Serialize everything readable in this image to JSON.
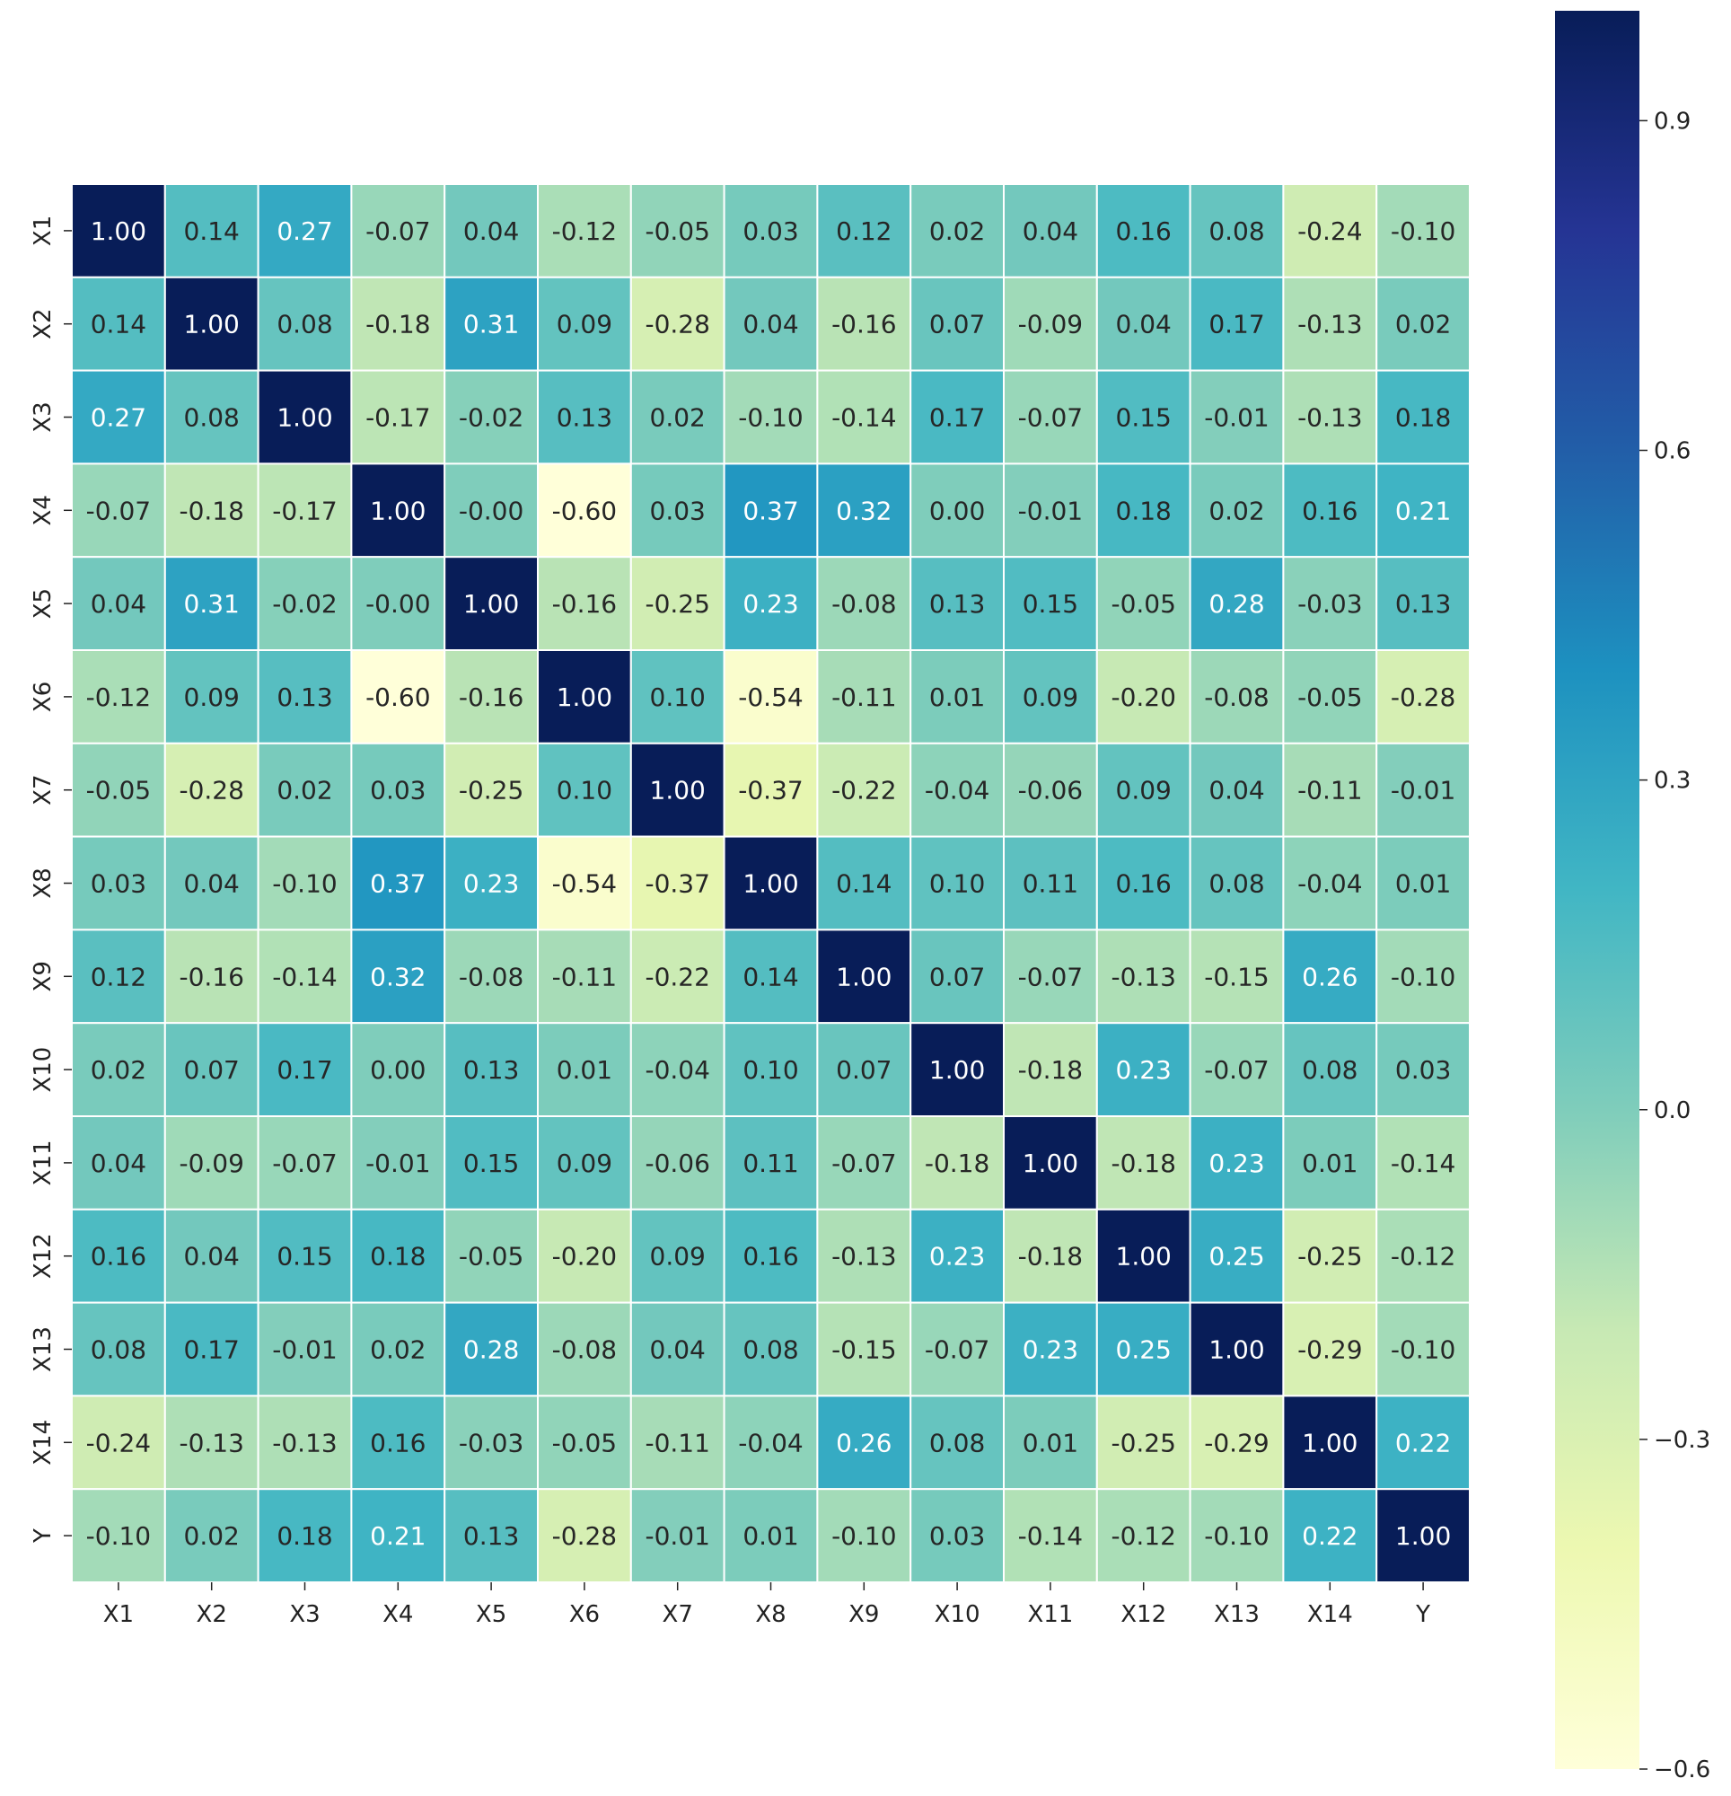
{
  "chart_data": {
    "type": "heatmap",
    "title": "",
    "xlabel": "",
    "ylabel": "",
    "x_labels": [
      "X1",
      "X2",
      "X3",
      "X4",
      "X5",
      "X6",
      "X7",
      "X8",
      "X9",
      "X10",
      "X11",
      "X12",
      "X13",
      "X14",
      "Y"
    ],
    "y_labels": [
      "X1",
      "X2",
      "X3",
      "X4",
      "X5",
      "X6",
      "X7",
      "X8",
      "X9",
      "X10",
      "X11",
      "X12",
      "X13",
      "X14",
      "Y"
    ],
    "values": [
      [
        1.0,
        0.14,
        0.27,
        -0.07,
        0.04,
        -0.12,
        -0.05,
        0.03,
        0.12,
        0.02,
        0.04,
        0.16,
        0.08,
        -0.24,
        -0.1
      ],
      [
        0.14,
        1.0,
        0.08,
        -0.18,
        0.31,
        0.09,
        -0.28,
        0.04,
        -0.16,
        0.07,
        -0.09,
        0.04,
        0.17,
        -0.13,
        0.02
      ],
      [
        0.27,
        0.08,
        1.0,
        -0.17,
        -0.02,
        0.13,
        0.02,
        -0.1,
        -0.14,
        0.17,
        -0.07,
        0.15,
        -0.01,
        -0.13,
        0.18
      ],
      [
        -0.07,
        -0.18,
        -0.17,
        1.0,
        -0.0,
        -0.6,
        0.03,
        0.37,
        0.32,
        0.0,
        -0.01,
        0.18,
        0.02,
        0.16,
        0.21
      ],
      [
        0.04,
        0.31,
        -0.02,
        -0.0,
        1.0,
        -0.16,
        -0.25,
        0.23,
        -0.08,
        0.13,
        0.15,
        -0.05,
        0.28,
        -0.03,
        0.13
      ],
      [
        -0.12,
        0.09,
        0.13,
        -0.6,
        -0.16,
        1.0,
        0.1,
        -0.54,
        -0.11,
        0.01,
        0.09,
        -0.2,
        -0.08,
        -0.05,
        -0.28
      ],
      [
        -0.05,
        -0.28,
        0.02,
        0.03,
        -0.25,
        0.1,
        1.0,
        -0.37,
        -0.22,
        -0.04,
        -0.06,
        0.09,
        0.04,
        -0.11,
        -0.01
      ],
      [
        0.03,
        0.04,
        -0.1,
        0.37,
        0.23,
        -0.54,
        -0.37,
        1.0,
        0.14,
        0.1,
        0.11,
        0.16,
        0.08,
        -0.04,
        0.01
      ],
      [
        0.12,
        -0.16,
        -0.14,
        0.32,
        -0.08,
        -0.11,
        -0.22,
        0.14,
        1.0,
        0.07,
        -0.07,
        -0.13,
        -0.15,
        0.26,
        -0.1
      ],
      [
        0.02,
        0.07,
        0.17,
        0.0,
        0.13,
        0.01,
        -0.04,
        0.1,
        0.07,
        1.0,
        -0.18,
        0.23,
        -0.07,
        0.08,
        0.03
      ],
      [
        0.04,
        -0.09,
        -0.07,
        -0.01,
        0.15,
        0.09,
        -0.06,
        0.11,
        -0.07,
        -0.18,
        1.0,
        -0.18,
        0.23,
        0.01,
        -0.14
      ],
      [
        0.16,
        0.04,
        0.15,
        0.18,
        -0.05,
        -0.2,
        0.09,
        0.16,
        -0.13,
        0.23,
        -0.18,
        1.0,
        0.25,
        -0.25,
        -0.12
      ],
      [
        0.08,
        0.17,
        -0.01,
        0.02,
        0.28,
        -0.08,
        0.04,
        0.08,
        -0.15,
        -0.07,
        0.23,
        0.25,
        1.0,
        -0.29,
        -0.1
      ],
      [
        -0.24,
        -0.13,
        -0.13,
        0.16,
        -0.03,
        -0.05,
        -0.11,
        -0.04,
        0.26,
        0.08,
        0.01,
        -0.25,
        -0.29,
        1.0,
        0.22
      ],
      [
        -0.1,
        0.02,
        0.18,
        0.21,
        0.13,
        -0.28,
        -0.01,
        0.01,
        -0.1,
        0.03,
        -0.14,
        -0.12,
        -0.1,
        0.22,
        1.0
      ]
    ],
    "value_format": "0.00",
    "colormap": "YlGnBu",
    "vmin": -0.6,
    "vmax": 1.0,
    "colorbar": {
      "ticks": [
        0.9,
        0.6,
        0.3,
        0.0,
        -0.3,
        -0.6
      ],
      "tick_labels": [
        "0.9",
        "0.6",
        "0.3",
        "0.0",
        "−0.3",
        "−0.6"
      ],
      "position": "right"
    },
    "grid": true
  }
}
